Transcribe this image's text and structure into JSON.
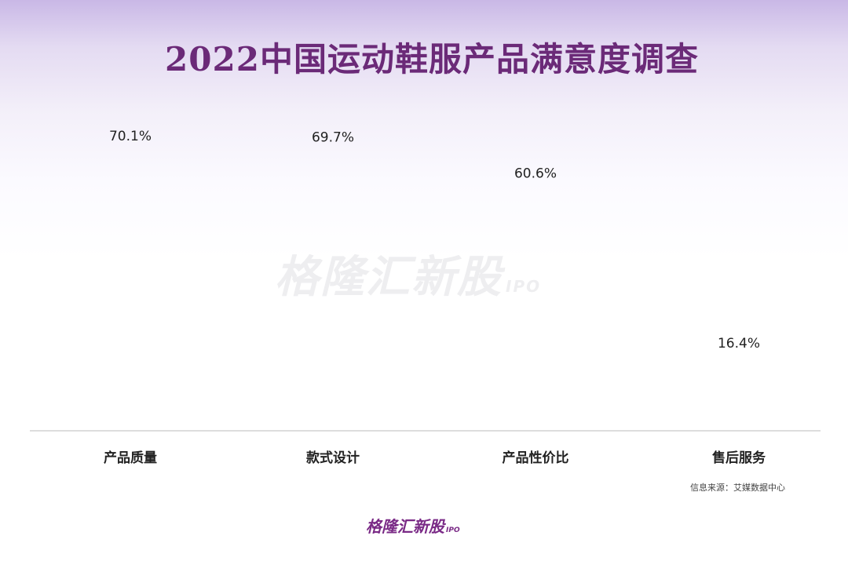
{
  "title": "2022中国运动鞋服产品满意度调查",
  "watermark": {
    "main": "格隆汇新股",
    "sub": "IPO"
  },
  "source": "信息来源：艾媒数据中心",
  "brand": {
    "main": "格隆汇新股",
    "sub": "IPO"
  },
  "colors": {
    "icon": "#f06a3c",
    "title": "#6b2a78",
    "brand": "#7a2a86"
  },
  "chart_data": {
    "type": "bar",
    "style": "pictograph",
    "icon": "thumbs-up-icon",
    "categories": [
      "产品质量",
      "款式设计",
      "产品性价比",
      "售后服务"
    ],
    "values": [
      70.1,
      69.7,
      60.6,
      16.4
    ],
    "value_labels": [
      "70.1%",
      "69.7%",
      "60.6%",
      "16.4%"
    ],
    "unit": "%",
    "grid": false,
    "legend": "none"
  }
}
